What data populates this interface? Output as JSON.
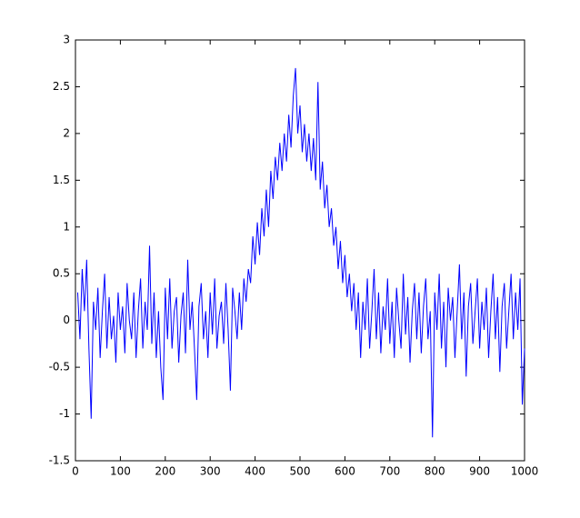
{
  "chart_data": {
    "type": "line",
    "x": [
      5,
      10,
      15,
      20,
      25,
      30,
      35,
      40,
      45,
      50,
      55,
      60,
      65,
      70,
      75,
      80,
      85,
      90,
      95,
      100,
      105,
      110,
      115,
      120,
      125,
      130,
      135,
      140,
      145,
      150,
      155,
      160,
      165,
      170,
      175,
      180,
      185,
      190,
      195,
      200,
      205,
      210,
      215,
      220,
      225,
      230,
      235,
      240,
      245,
      250,
      255,
      260,
      265,
      270,
      275,
      280,
      285,
      290,
      295,
      300,
      305,
      310,
      315,
      320,
      325,
      330,
      335,
      340,
      345,
      350,
      355,
      360,
      365,
      370,
      375,
      380,
      385,
      390,
      395,
      400,
      405,
      410,
      415,
      420,
      425,
      430,
      435,
      440,
      445,
      450,
      455,
      460,
      465,
      470,
      475,
      480,
      485,
      490,
      495,
      500,
      505,
      510,
      515,
      520,
      525,
      530,
      535,
      540,
      545,
      550,
      555,
      560,
      565,
      570,
      575,
      580,
      585,
      590,
      595,
      600,
      605,
      610,
      615,
      620,
      625,
      630,
      635,
      640,
      645,
      650,
      655,
      660,
      665,
      670,
      675,
      680,
      685,
      690,
      695,
      700,
      705,
      710,
      715,
      720,
      725,
      730,
      735,
      740,
      745,
      750,
      755,
      760,
      765,
      770,
      775,
      780,
      785,
      790,
      795,
      800,
      805,
      810,
      815,
      820,
      825,
      830,
      835,
      840,
      845,
      850,
      855,
      860,
      865,
      870,
      875,
      880,
      885,
      890,
      895,
      900,
      905,
      910,
      915,
      920,
      925,
      930,
      935,
      940,
      945,
      950,
      955,
      960,
      965,
      970,
      975,
      980,
      985,
      990,
      995,
      1000
    ],
    "series": [
      {
        "color": "#0000ff",
        "values": [
          0.3,
          -0.2,
          0.55,
          0.1,
          0.65,
          -0.3,
          -1.05,
          0.2,
          -0.1,
          0.35,
          -0.4,
          0.1,
          0.5,
          -0.3,
          0.25,
          -0.2,
          0.05,
          -0.45,
          0.3,
          -0.1,
          0.15,
          -0.35,
          0.4,
          0.0,
          -0.2,
          0.3,
          -0.4,
          0.1,
          0.45,
          -0.3,
          0.2,
          -0.1,
          0.8,
          -0.25,
          0.3,
          -0.4,
          0.1,
          -0.5,
          -0.85,
          0.35,
          -0.2,
          0.45,
          -0.3,
          0.1,
          0.25,
          -0.45,
          0.05,
          0.3,
          -0.35,
          0.65,
          -0.1,
          0.2,
          -0.3,
          -0.85,
          0.15,
          0.4,
          -0.2,
          0.1,
          -0.4,
          0.3,
          -0.15,
          0.45,
          -0.3,
          0.05,
          0.2,
          -0.25,
          0.4,
          -0.1,
          -0.75,
          0.35,
          0.1,
          -0.2,
          0.3,
          -0.1,
          0.45,
          0.2,
          0.55,
          0.4,
          0.9,
          0.6,
          1.05,
          0.7,
          1.2,
          0.9,
          1.4,
          1.0,
          1.6,
          1.3,
          1.75,
          1.5,
          1.9,
          1.6,
          2.0,
          1.7,
          2.2,
          1.85,
          2.4,
          2.7,
          2.0,
          2.3,
          1.8,
          2.1,
          1.7,
          2.0,
          1.6,
          1.95,
          1.5,
          2.55,
          1.4,
          1.7,
          1.2,
          1.45,
          1.0,
          1.2,
          0.8,
          1.0,
          0.55,
          0.85,
          0.4,
          0.7,
          0.25,
          0.5,
          0.1,
          0.4,
          -0.1,
          0.3,
          -0.4,
          0.2,
          -0.1,
          0.45,
          -0.3,
          0.1,
          0.55,
          -0.2,
          0.3,
          -0.35,
          0.15,
          -0.1,
          0.45,
          -0.25,
          0.2,
          -0.4,
          0.35,
          0.0,
          -0.3,
          0.5,
          -0.15,
          0.25,
          -0.45,
          0.1,
          0.4,
          -0.2,
          0.3,
          -0.35,
          0.15,
          0.45,
          -0.2,
          0.1,
          -1.25,
          0.3,
          -0.1,
          0.5,
          -0.3,
          0.2,
          -0.5,
          0.35,
          0.0,
          0.25,
          -0.4,
          0.1,
          0.6,
          -0.2,
          0.3,
          -0.6,
          0.15,
          0.4,
          -0.25,
          0.1,
          0.45,
          -0.3,
          0.2,
          -0.1,
          0.35,
          -0.4,
          0.1,
          0.5,
          -0.2,
          0.25,
          -0.55,
          0.15,
          0.4,
          -0.3,
          0.1,
          0.5,
          -0.2,
          0.3,
          -0.1,
          0.45,
          -0.9,
          -0.3
        ]
      }
    ],
    "xlim": [
      0,
      1000
    ],
    "xticks": [
      0,
      100,
      200,
      300,
      400,
      500,
      600,
      700,
      800,
      900,
      1000
    ],
    "ylim": [
      -1.5,
      3
    ],
    "yticks": [
      -1.5,
      -1,
      -0.5,
      0,
      0.5,
      1,
      1.5,
      2,
      2.5,
      3
    ]
  }
}
